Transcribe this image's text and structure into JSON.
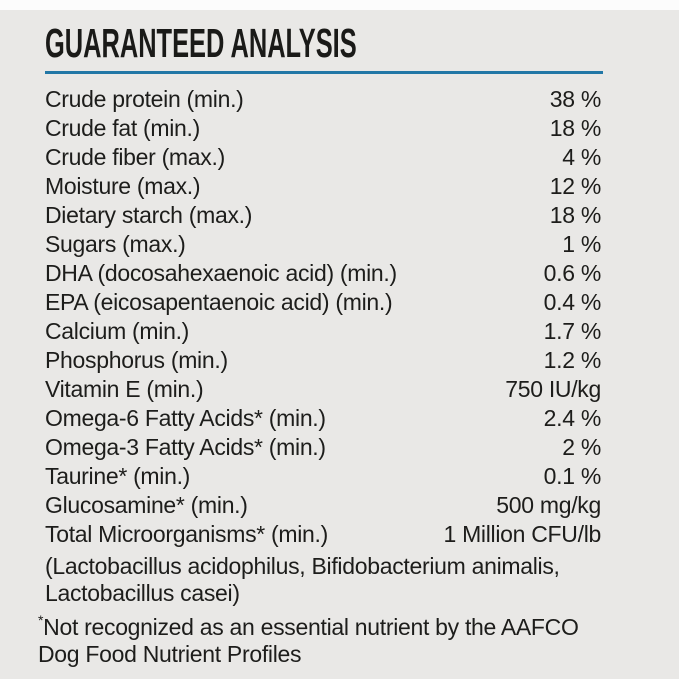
{
  "page": {
    "title": "GUARANTEED ANALYSIS"
  },
  "colors": {
    "background": "#e9e8e6",
    "top_strip": "#fcfcfc",
    "rule_accent": "#2277a6",
    "text": "#1d1d1b"
  },
  "analysis": {
    "rows": [
      {
        "label": "Crude protein (min.)",
        "value": "38 %"
      },
      {
        "label": "Crude fat (min.)",
        "value": "18 %"
      },
      {
        "label": "Crude fiber (max.)",
        "value": "4 %"
      },
      {
        "label": "Moisture (max.)",
        "value": "12 %"
      },
      {
        "label": "Dietary starch (max.)",
        "value": "18 %"
      },
      {
        "label": "Sugars (max.)",
        "value": "1 %"
      },
      {
        "label": "DHA (docosahexaenoic acid) (min.)",
        "value": "0.6 %"
      },
      {
        "label": "EPA (eicosapentaenoic acid) (min.)",
        "value": "0.4 %"
      },
      {
        "label": "Calcium (min.)",
        "value": "1.7 %"
      },
      {
        "label": "Phosphorus (min.)",
        "value": "1.2 %"
      },
      {
        "label": "Vitamin E (min.)",
        "value": "750 IU/kg"
      },
      {
        "label": "Omega-6 Fatty Acids* (min.)",
        "value": "2.4 %"
      },
      {
        "label": "Omega-3 Fatty Acids* (min.)",
        "value": "2 %"
      },
      {
        "label": "Taurine* (min.)",
        "value": "0.1 %"
      },
      {
        "label": "Glucosamine* (min.)",
        "value": "500 mg/kg"
      },
      {
        "label": "Total Microorganisms* (min.)",
        "value": "1 Million CFU/lb"
      }
    ],
    "species_note_line1": "(Lactobacillus acidophilus, Bifidobacterium animalis,",
    "species_note_line2": "Lactobacillus casei)",
    "footnote_marker": "*",
    "footnote_line1": "Not recognized as an essential nutrient by the AAFCO",
    "footnote_line2": "Dog Food Nutrient Profiles"
  }
}
